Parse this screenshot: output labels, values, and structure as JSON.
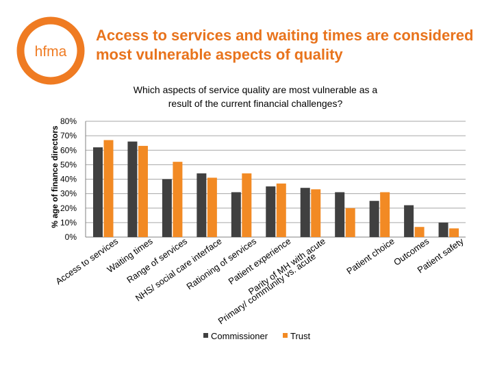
{
  "logo": {
    "text": "hfma"
  },
  "slide_title": "Access to services and waiting times are considered most vulnerable aspects of quality",
  "chart_data": {
    "type": "bar",
    "title_lines": [
      "Which aspects of service quality are most vulnerable as a",
      "result of the current financial challenges?"
    ],
    "ylabel": "% age of finance directors",
    "ylim": [
      0,
      80
    ],
    "yticks": [
      "0%",
      "10%",
      "20%",
      "30%",
      "40%",
      "50%",
      "60%",
      "70%",
      "80%"
    ],
    "grid": true,
    "categories": [
      "Access to services",
      "Waiting times",
      "Range of services",
      "NHS/ social care interface",
      "Rationing of services",
      "Patient experience",
      "Parity of MH with acute",
      "Primary/ community vs. acute",
      "Patient choice",
      "Outcomes",
      "Patient safety"
    ],
    "category_lines": [
      [
        "Access to services"
      ],
      [
        "Waiting times"
      ],
      [
        "Range of services"
      ],
      [
        "NHS/ social care interface"
      ],
      [
        "Rationing of services"
      ],
      [
        "Patient experience"
      ],
      [
        "Parity of MH with acute",
        "Primary/ community vs. acute"
      ],
      [],
      [
        "Patient choice"
      ],
      [
        "Outcomes"
      ],
      [
        "Patient safety"
      ]
    ],
    "series": [
      {
        "name": "Commissioner",
        "color": "#404040",
        "values": [
          62,
          66,
          40,
          44,
          31,
          35,
          34,
          31,
          25,
          22,
          10
        ]
      },
      {
        "name": "Trust",
        "color": "#f28a24",
        "values": [
          67,
          63,
          52,
          41,
          44,
          37,
          33,
          20,
          31,
          7,
          6
        ]
      }
    ],
    "legend_position": "bottom"
  }
}
